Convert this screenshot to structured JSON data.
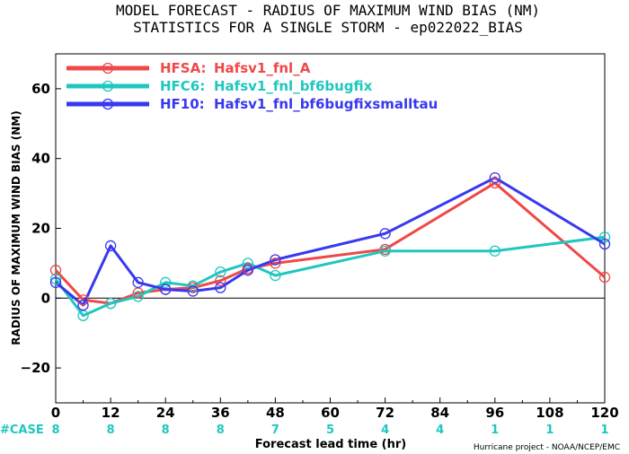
{
  "chart_data": {
    "type": "line",
    "title": "MODEL FORECAST - RADIUS OF MAXIMUM WIND BIAS (NM)",
    "subtitle": "STATISTICS FOR A SINGLE STORM - ep022022_BIAS",
    "xlabel": "Forecast lead time (hr)",
    "ylabel": "RADIUS OF MAXIMUM WIND BIAS (NM)",
    "xlim": [
      0,
      120
    ],
    "ylim": [
      -30,
      70
    ],
    "xticks": [
      0,
      12,
      24,
      36,
      48,
      60,
      72,
      84,
      96,
      108,
      120
    ],
    "yticks": [
      -20,
      0,
      20,
      40,
      60
    ],
    "grid": false,
    "legend_position": "top-left",
    "zero_line": true,
    "series": [
      {
        "name": "HFSA:",
        "desc": "Hafsv1_fnl_A",
        "color": "#f04848",
        "x": [
          0,
          6,
          12,
          18,
          24,
          30,
          36,
          42,
          48,
          72,
          96,
          120
        ],
        "y": [
          8.0,
          -0.5,
          -1.5,
          1.5,
          2.5,
          3.0,
          5.0,
          8.5,
          10.0,
          14.0,
          33.0,
          6.0
        ]
      },
      {
        "name": "HFC6:",
        "desc": "Hafsv1_fnl_bf6bugfix",
        "color": "#1fc7c0",
        "x": [
          0,
          6,
          12,
          18,
          24,
          30,
          36,
          42,
          48,
          72,
          96,
          120
        ],
        "y": [
          5.5,
          -5.0,
          -1.5,
          0.5,
          4.5,
          3.5,
          7.5,
          10.0,
          6.5,
          13.5,
          13.5,
          17.5
        ]
      },
      {
        "name": "HF10:",
        "desc": "Hafsv1_fnl_bf6bugfixsmalltau",
        "color": "#3838f0",
        "x": [
          0,
          6,
          12,
          18,
          24,
          30,
          36,
          42,
          48,
          72,
          96,
          120
        ],
        "y": [
          4.5,
          -2.0,
          15.0,
          4.5,
          2.5,
          2.0,
          3.0,
          8.0,
          11.0,
          18.5,
          34.5,
          15.5
        ]
      }
    ],
    "cases": {
      "label": "#CASE",
      "x": [
        0,
        12,
        24,
        36,
        48,
        60,
        72,
        84,
        96,
        108,
        120
      ],
      "values": [
        "8",
        "8",
        "8",
        "8",
        "7",
        "5",
        "4",
        "4",
        "1",
        "1",
        "1"
      ]
    },
    "credit": "Hurricane project - NOAA/NCEP/EMC"
  }
}
